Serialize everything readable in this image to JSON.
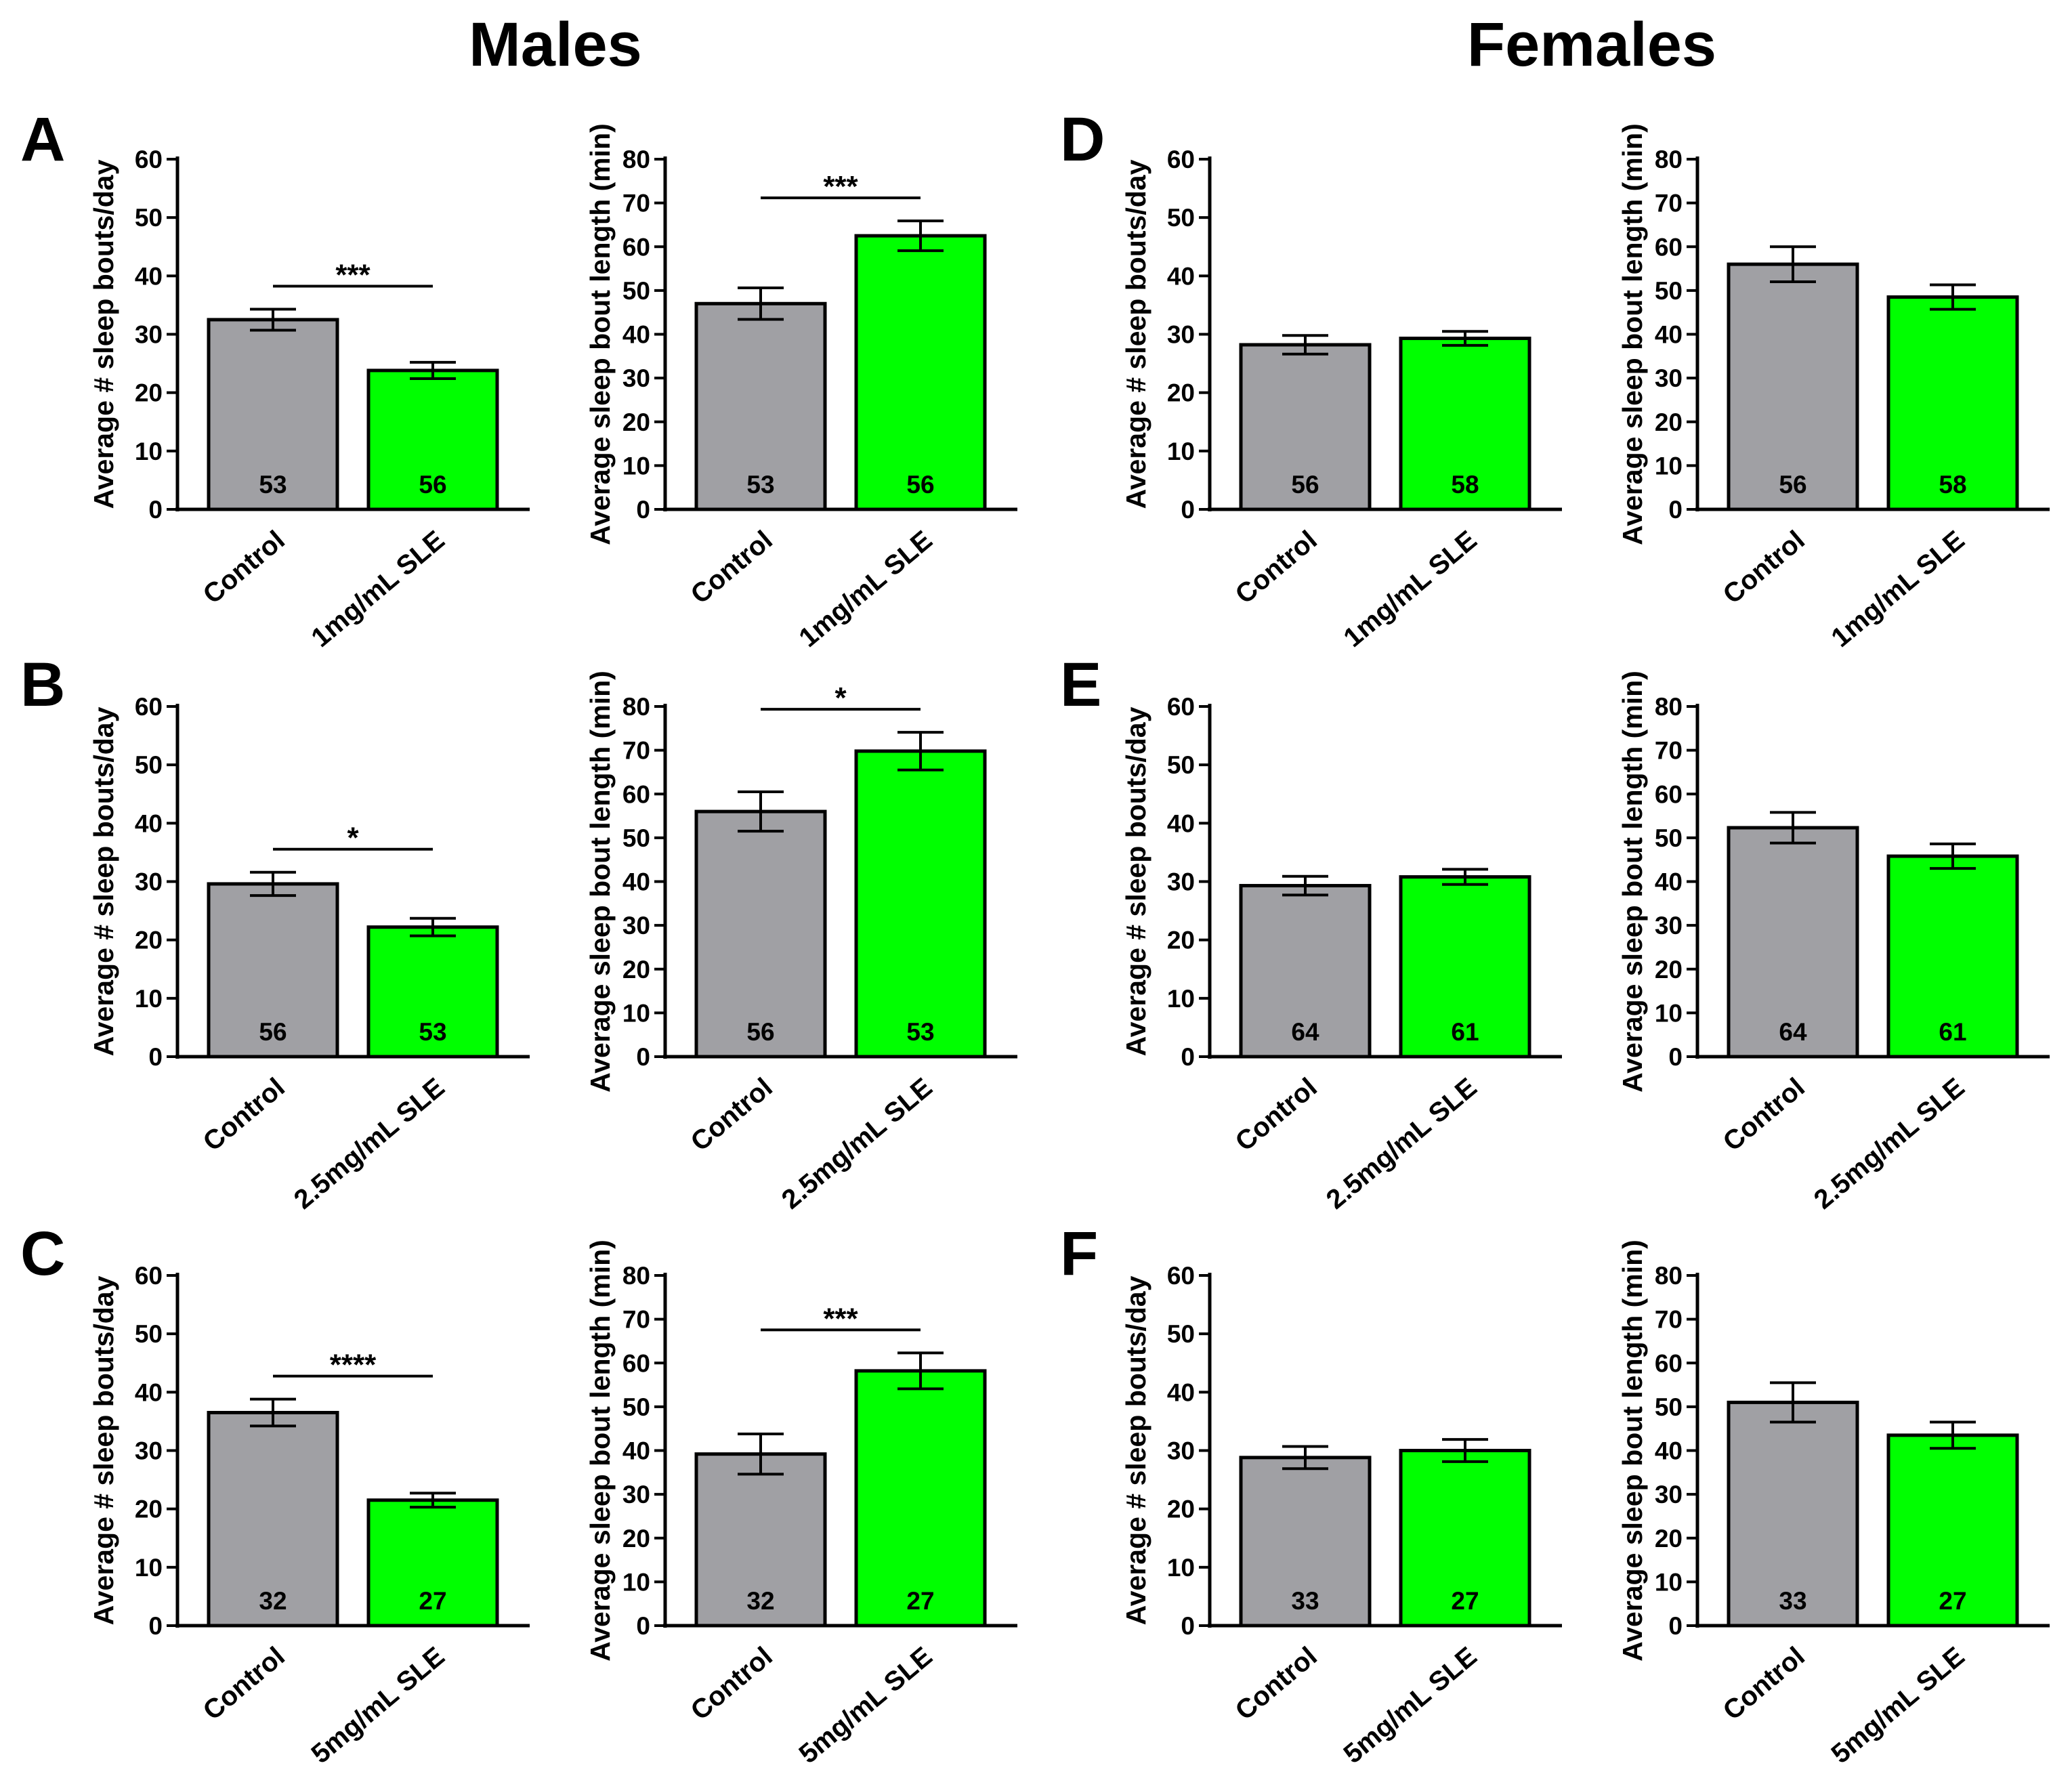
{
  "headings": {
    "males": "Males",
    "females": "Females"
  },
  "colors": {
    "control": "#a0a0a4",
    "treatment": "#00ff00",
    "outline": "#000000"
  },
  "chart_data": [
    {
      "panel": "A",
      "type": "bar",
      "ylabel": "Average # sleep bouts/day",
      "ylim": [
        0,
        60
      ],
      "yticks": [
        0,
        10,
        20,
        30,
        40,
        50,
        60
      ],
      "categories": [
        "Control",
        "1mg/mL SLE"
      ],
      "values": [
        32.5,
        23.8
      ],
      "errors": [
        1.8,
        1.4
      ],
      "n": [
        "53",
        "56"
      ],
      "significance": "***"
    },
    {
      "panel": "A",
      "type": "bar",
      "ylabel": "Average sleep bout length (min)",
      "ylim": [
        0,
        80
      ],
      "yticks": [
        0,
        10,
        20,
        30,
        40,
        50,
        60,
        70,
        80
      ],
      "categories": [
        "Control",
        "1mg/mL SLE"
      ],
      "values": [
        47,
        62.5
      ],
      "errors": [
        3.6,
        3.4
      ],
      "n": [
        "53",
        "56"
      ],
      "significance": "***"
    },
    {
      "panel": "D",
      "type": "bar",
      "ylabel": "Average # sleep bouts/day",
      "ylim": [
        0,
        60
      ],
      "yticks": [
        0,
        10,
        20,
        30,
        40,
        50,
        60
      ],
      "categories": [
        "Control",
        "1mg/mL SLE"
      ],
      "values": [
        28.2,
        29.3
      ],
      "errors": [
        1.6,
        1.2
      ],
      "n": [
        "56",
        "58"
      ],
      "significance": ""
    },
    {
      "panel": "D",
      "type": "bar",
      "ylabel": "Average sleep bout length (min)",
      "ylim": [
        0,
        80
      ],
      "yticks": [
        0,
        10,
        20,
        30,
        40,
        50,
        60,
        70,
        80
      ],
      "categories": [
        "Control",
        "1mg/mL SLE"
      ],
      "values": [
        56,
        48.5
      ],
      "errors": [
        4,
        2.8
      ],
      "n": [
        "56",
        "58"
      ],
      "significance": ""
    },
    {
      "panel": "B",
      "type": "bar",
      "ylabel": "Average # sleep bouts/day",
      "ylim": [
        0,
        60
      ],
      "yticks": [
        0,
        10,
        20,
        30,
        40,
        50,
        60
      ],
      "categories": [
        "Control",
        "2.5mg/mL SLE"
      ],
      "values": [
        29.6,
        22.2
      ],
      "errors": [
        2.0,
        1.5
      ],
      "n": [
        "56",
        "53"
      ],
      "significance": "*"
    },
    {
      "panel": "B",
      "type": "bar",
      "ylabel": "Average sleep bout length (min)",
      "ylim": [
        0,
        80
      ],
      "yticks": [
        0,
        10,
        20,
        30,
        40,
        50,
        60,
        70,
        80
      ],
      "categories": [
        "Control",
        "2.5mg/mL SLE"
      ],
      "values": [
        56,
        69.8
      ],
      "errors": [
        4.5,
        4.3
      ],
      "n": [
        "56",
        "53"
      ],
      "significance": "*"
    },
    {
      "panel": "E",
      "type": "bar",
      "ylabel": "Average # sleep bouts/day",
      "ylim": [
        0,
        60
      ],
      "yticks": [
        0,
        10,
        20,
        30,
        40,
        50,
        60
      ],
      "categories": [
        "Control",
        "2.5mg/mL SLE"
      ],
      "values": [
        29.3,
        30.8
      ],
      "errors": [
        1.6,
        1.3
      ],
      "n": [
        "64",
        "61"
      ],
      "significance": ""
    },
    {
      "panel": "E",
      "type": "bar",
      "ylabel": "Average sleep bout length (min)",
      "ylim": [
        0,
        80
      ],
      "yticks": [
        0,
        10,
        20,
        30,
        40,
        50,
        60,
        70,
        80
      ],
      "categories": [
        "Control",
        "2.5mg/mL SLE"
      ],
      "values": [
        52.3,
        45.8
      ],
      "errors": [
        3.5,
        2.8
      ],
      "n": [
        "64",
        "61"
      ],
      "significance": ""
    },
    {
      "panel": "C",
      "type": "bar",
      "ylabel": "Average # sleep bouts/day",
      "ylim": [
        0,
        60
      ],
      "yticks": [
        0,
        10,
        20,
        30,
        40,
        50,
        60
      ],
      "categories": [
        "Control",
        "5mg/mL SLE"
      ],
      "values": [
        36.5,
        21.5
      ],
      "errors": [
        2.3,
        1.2
      ],
      "n": [
        "32",
        "27"
      ],
      "significance": "****"
    },
    {
      "panel": "C",
      "type": "bar",
      "ylabel": "Average sleep bout length (min)",
      "ylim": [
        0,
        80
      ],
      "yticks": [
        0,
        10,
        20,
        30,
        40,
        50,
        60,
        70,
        80
      ],
      "categories": [
        "Control",
        "5mg/mL SLE"
      ],
      "values": [
        39.2,
        58.2
      ],
      "errors": [
        4.6,
        4.1
      ],
      "n": [
        "32",
        "27"
      ],
      "significance": "***"
    },
    {
      "panel": "F",
      "type": "bar",
      "ylabel": "Average # sleep bouts/day",
      "ylim": [
        0,
        60
      ],
      "yticks": [
        0,
        10,
        20,
        30,
        40,
        50,
        60
      ],
      "categories": [
        "Control",
        "5mg/mL SLE"
      ],
      "values": [
        28.8,
        30
      ],
      "errors": [
        1.9,
        1.9
      ],
      "n": [
        "33",
        "27"
      ],
      "significance": ""
    },
    {
      "panel": "F",
      "type": "bar",
      "ylabel": "Average sleep bout length (min)",
      "ylim": [
        0,
        80
      ],
      "yticks": [
        0,
        10,
        20,
        30,
        40,
        50,
        60,
        70,
        80
      ],
      "categories": [
        "Control",
        "5mg/mL SLE"
      ],
      "values": [
        51,
        43.5
      ],
      "errors": [
        4.5,
        3.0
      ],
      "n": [
        "33",
        "27"
      ],
      "significance": ""
    }
  ]
}
